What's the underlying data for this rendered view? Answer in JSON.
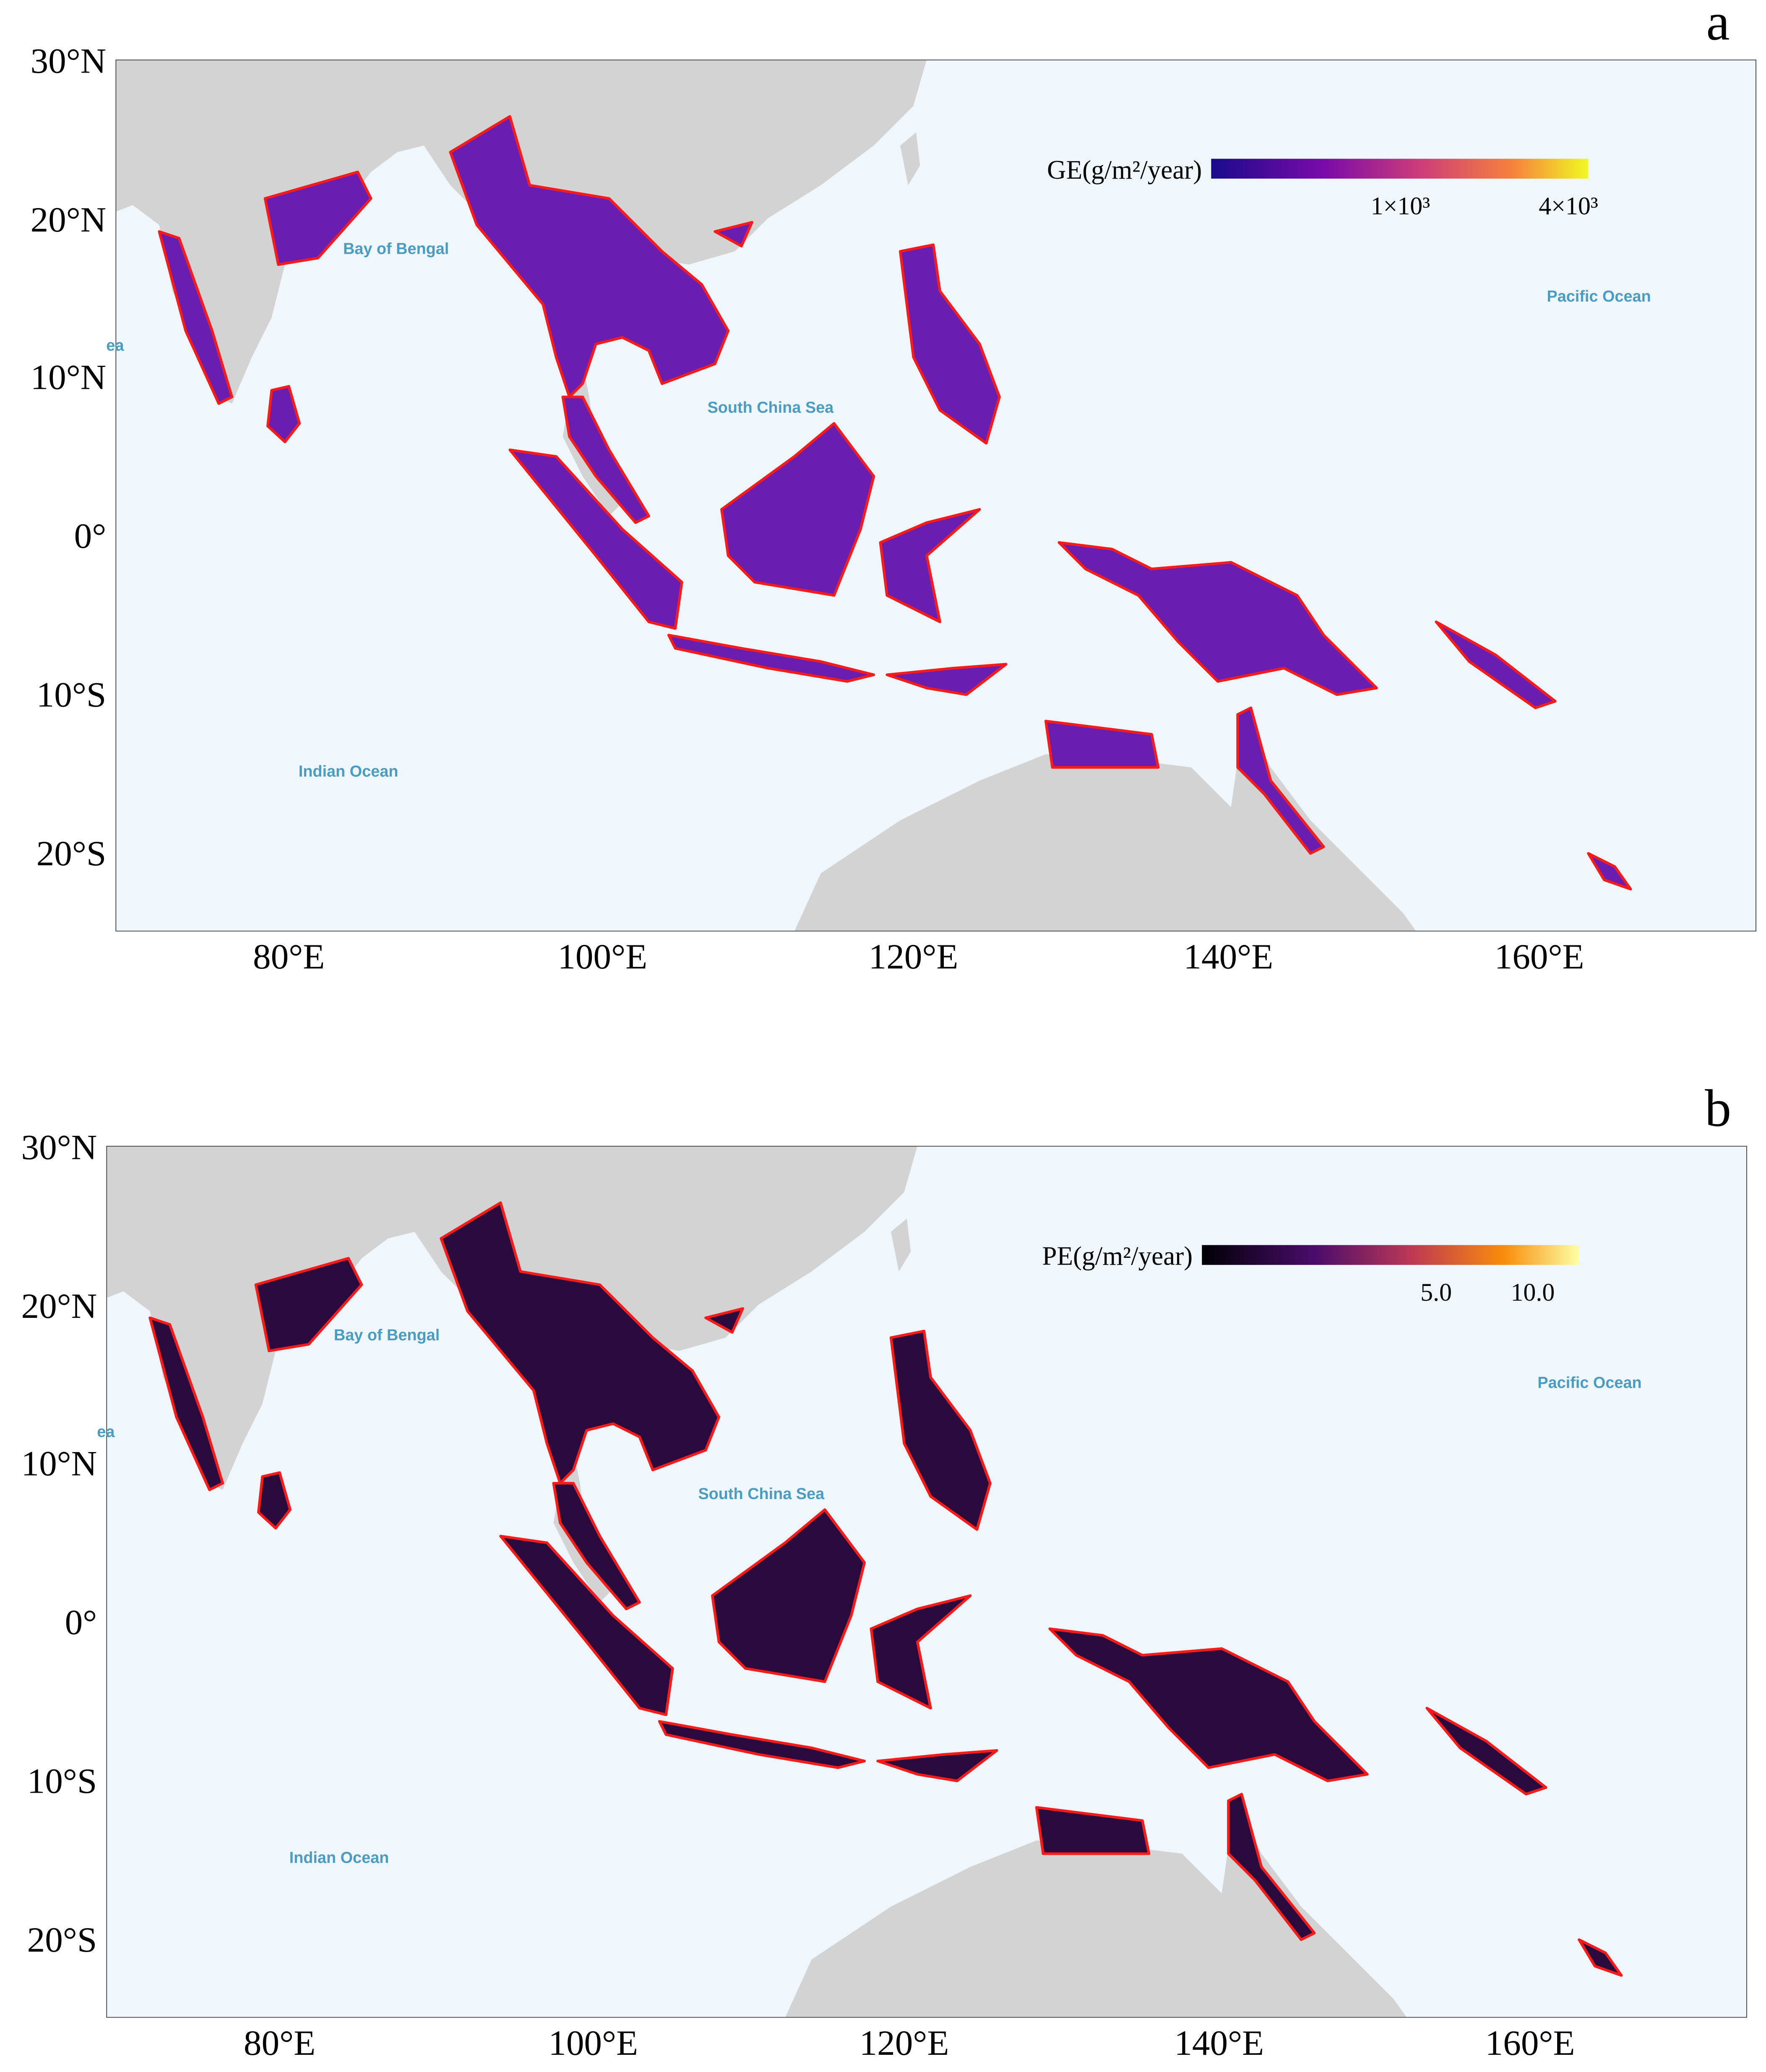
{
  "maps": [
    {
      "panel": "a",
      "lat_ticks": [
        "30°N",
        "20°N",
        "10°N",
        "0°",
        "10°S",
        "20°S"
      ],
      "lon_ticks": [
        "80°E",
        "100°E",
        "120°E",
        "140°E",
        "160°E"
      ],
      "ocean_labels": [
        "Bay of Bengal",
        "South China Sea",
        "Pacific Ocean",
        "Indian Ocean",
        "ea"
      ],
      "colorbar": {
        "title": "GE(g/m²/year)",
        "ticks": [
          "1×10³",
          "4×10³"
        ]
      }
    },
    {
      "panel": "b",
      "lat_ticks": [
        "30°N",
        "20°N",
        "10°N",
        "0°",
        "10°S",
        "20°S"
      ],
      "lon_ticks": [
        "80°E",
        "100°E",
        "120°E",
        "140°E",
        "160°E"
      ],
      "ocean_labels": [
        "Bay of Bengal",
        "South China Sea",
        "Pacific Ocean",
        "Indian Ocean",
        "ea"
      ],
      "colorbar": {
        "title": "PE(g/m²/year)",
        "ticks": [
          "5.0",
          "10.0"
        ]
      }
    }
  ]
}
